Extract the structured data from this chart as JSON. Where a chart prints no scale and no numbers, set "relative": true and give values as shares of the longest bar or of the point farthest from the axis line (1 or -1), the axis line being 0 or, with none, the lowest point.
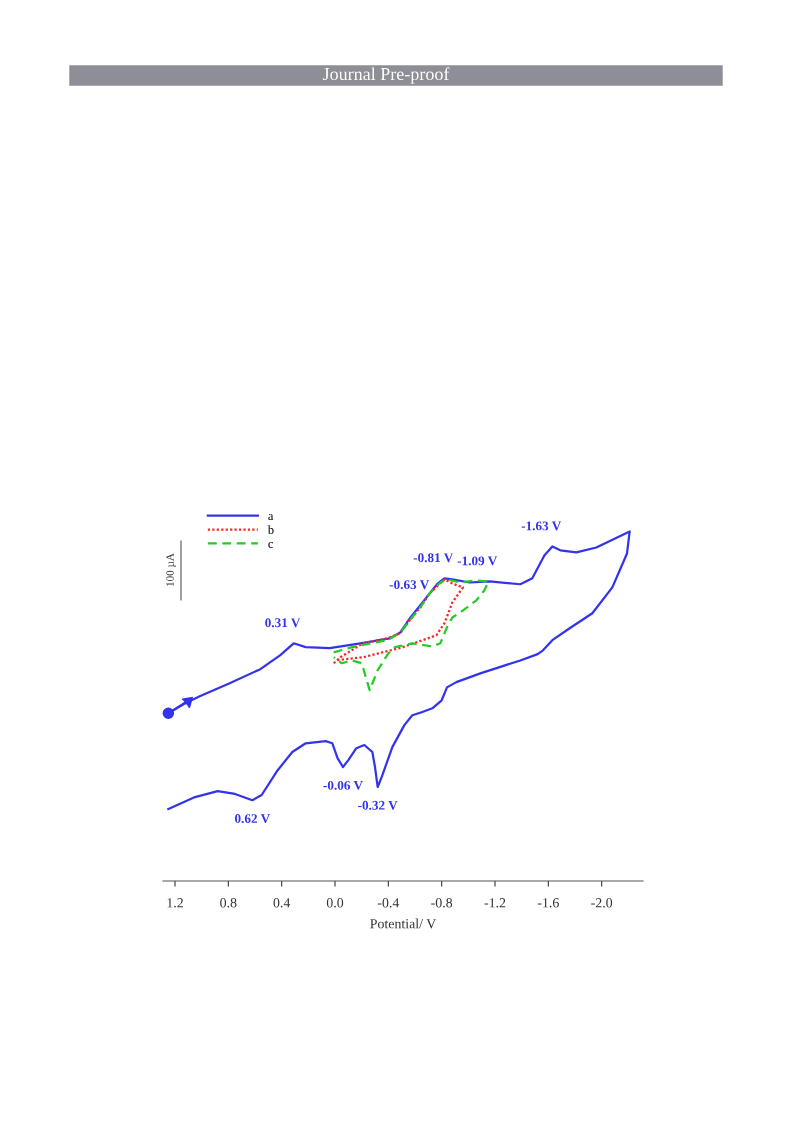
{
  "chart_data": {
    "type": "line",
    "relative": true,
    "xlabel": "Potential/ V",
    "xlim": [
      1.29,
      -2.31
    ],
    "xticks": [
      1.2,
      0.8,
      0.4,
      {
        "value": 0,
        "label": "0.0"
      },
      -0.4,
      -0.8,
      -1.2,
      -1.6,
      {
        "value": -2,
        "label": "-2.0"
      }
    ],
    "grid": false,
    "legend": "top left",
    "marker": "none",
    "series": [
      {
        "name": "a",
        "color": "#3333ee",
        "line_style": "solid",
        "x": [
          1.25,
          1.12,
          1.01,
          0.79,
          0.56,
          0.41,
          0.31,
          0.22,
          0.04,
          -0.19,
          -0.41,
          -0.49,
          -0.56,
          -0.64,
          -0.71,
          -0.77,
          -0.82,
          -0.88,
          -1.01,
          -1.16,
          -1.39,
          -1.48,
          -1.57,
          -1.63,
          -1.69,
          -1.81,
          -1.96,
          -2.21,
          -2.19,
          -2.08,
          -1.93,
          -1.76,
          -1.63,
          -1.56,
          -1.52,
          -1.39,
          -1.09,
          -0.91,
          -0.84,
          -0.8,
          -0.73,
          -0.65,
          -0.58,
          -0.52,
          -0.43,
          -0.35,
          -0.32,
          -0.3,
          -0.28,
          -0.22,
          -0.16,
          -0.1,
          -0.06,
          -0.02,
          0.02,
          0.07,
          0.22,
          0.32,
          0.43,
          0.55,
          0.62,
          0.75,
          0.88,
          1.05,
          1.25
        ],
        "values": [
          0.48,
          0.509,
          0.529,
          0.566,
          0.606,
          0.646,
          0.68,
          0.669,
          0.666,
          0.68,
          0.694,
          0.711,
          0.751,
          0.789,
          0.823,
          0.851,
          0.866,
          0.863,
          0.854,
          0.857,
          0.849,
          0.866,
          0.931,
          0.957,
          0.946,
          0.94,
          0.954,
          1.0,
          0.937,
          0.84,
          0.766,
          0.723,
          0.689,
          0.66,
          0.649,
          0.631,
          0.594,
          0.569,
          0.554,
          0.517,
          0.494,
          0.483,
          0.474,
          0.446,
          0.383,
          0.297,
          0.269,
          0.326,
          0.369,
          0.389,
          0.38,
          0.346,
          0.326,
          0.351,
          0.394,
          0.4,
          0.394,
          0.369,
          0.317,
          0.246,
          0.231,
          0.249,
          0.257,
          0.24,
          0.206
        ]
      },
      {
        "name": "b",
        "color": "#ff2222",
        "line_style": "dotted",
        "x": [
          0.01,
          -0.04,
          -0.21,
          -0.39,
          -0.49,
          -0.56,
          -0.64,
          -0.71,
          -0.82,
          -0.88,
          -0.96,
          -0.88,
          -0.85,
          -0.82,
          -0.76,
          -0.51,
          -0.21,
          0.0
        ],
        "values": [
          0.623,
          0.64,
          0.68,
          0.694,
          0.709,
          0.746,
          0.783,
          0.823,
          0.863,
          0.851,
          0.84,
          0.797,
          0.766,
          0.737,
          0.703,
          0.669,
          0.64,
          0.631
        ]
      },
      {
        "name": "c",
        "color": "#22cc22",
        "line_style": "dashed",
        "x": [
          0.01,
          -0.13,
          -0.39,
          -0.49,
          -0.56,
          -0.64,
          -0.71,
          -0.79,
          -0.84,
          -0.94,
          -1.06,
          -1.15,
          -1.12,
          -1.06,
          -0.96,
          -0.88,
          -0.84,
          -0.79,
          -0.73,
          -0.58,
          -0.45,
          -0.4,
          -0.32,
          -0.26,
          -0.2,
          -0.13,
          -0.05,
          0.01
        ],
        "values": [
          0.654,
          0.669,
          0.689,
          0.709,
          0.746,
          0.783,
          0.823,
          0.854,
          0.863,
          0.854,
          0.86,
          0.857,
          0.831,
          0.803,
          0.774,
          0.754,
          0.726,
          0.68,
          0.671,
          0.68,
          0.669,
          0.651,
          0.603,
          0.546,
          0.623,
          0.631,
          0.623,
          0.64
        ]
      }
    ],
    "annotations": [
      "Journal Pre-proof",
      "100 µA",
      {
        "text": "0.31 V",
        "x": 0.31,
        "y": 0.68
      },
      {
        "text": "-0.63 V",
        "x": -0.64,
        "y": 0.789
      },
      {
        "text": "-0.81 V",
        "x": -0.82,
        "y": 0.866
      },
      {
        "text": "-1.09 V",
        "x": -1.15,
        "y": 0.857
      },
      {
        "text": "-1.63 V",
        "x": -1.63,
        "y": 0.957
      },
      {
        "text": "0.62 V",
        "x": 0.62,
        "y": 0.231
      },
      {
        "text": "-0.06 V",
        "x": -0.06,
        "y": 0.326
      },
      {
        "text": "-0.32 V",
        "x": -0.32,
        "y": 0.269
      }
    ]
  }
}
